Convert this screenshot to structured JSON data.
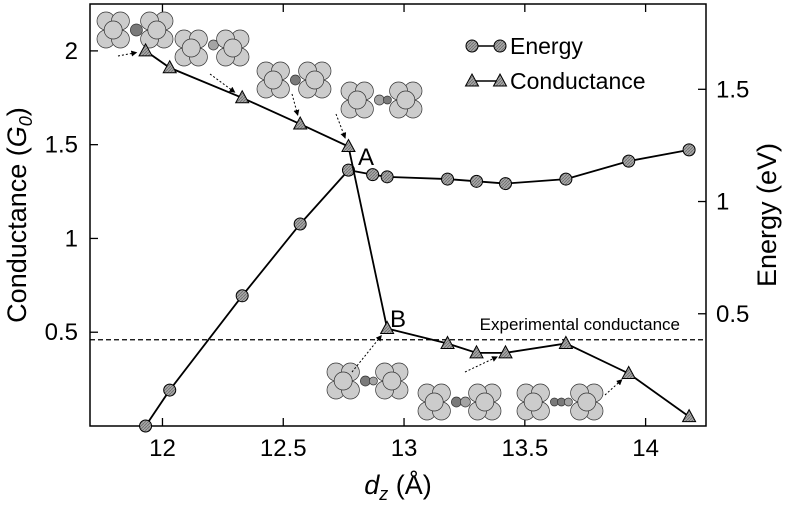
{
  "chart_data": {
    "type": "line",
    "xlabel": "d_z (Å)",
    "xlabel_main": "d",
    "xlabel_sub": "z",
    "xlabel_unit": " (Å)",
    "ylabel_left": "Conductance (G0)",
    "ylabel_left_main": "Conductance (",
    "ylabel_left_g": "G",
    "ylabel_left_sub": "0",
    "ylabel_left_close": ")",
    "ylabel_right": "Energy (eV)",
    "xlim": [
      11.7,
      14.25
    ],
    "ylim_left": [
      0,
      2.25
    ],
    "ylim_right": [
      0,
      1.88
    ],
    "x_ticks": [
      12,
      12.5,
      13,
      13.5,
      14
    ],
    "x_tick_labels": [
      "12",
      "12.5",
      "13",
      "13.5",
      "14"
    ],
    "y_left_ticks": [
      0.5,
      1,
      1.5,
      2
    ],
    "y_left_tick_labels": [
      "0.5",
      "1",
      "1.5",
      "2"
    ],
    "y_right_ticks": [
      0.5,
      1,
      1.5
    ],
    "y_right_tick_labels": [
      "0.5",
      "1",
      "1.5"
    ],
    "series": [
      {
        "name": "Energy",
        "axis": "right",
        "marker": "circle",
        "x": [
          11.93,
          12.03,
          12.33,
          12.57,
          12.77,
          12.87,
          12.93,
          13.18,
          13.3,
          13.42,
          13.67,
          13.93,
          14.18
        ],
        "y": [
          0.0,
          0.16,
          0.58,
          0.9,
          1.14,
          1.12,
          1.11,
          1.1,
          1.09,
          1.08,
          1.1,
          1.18,
          1.23
        ]
      },
      {
        "name": "Conductance",
        "axis": "left",
        "marker": "triangle",
        "x": [
          11.93,
          12.03,
          12.33,
          12.57,
          12.77,
          12.93,
          13.18,
          13.3,
          13.42,
          13.67,
          13.93,
          14.18
        ],
        "y": [
          2.0,
          1.91,
          1.75,
          1.61,
          1.49,
          0.52,
          0.44,
          0.39,
          0.39,
          0.44,
          0.28,
          0.05
        ]
      }
    ],
    "reference_line": {
      "label": "Experimental conductance",
      "y": 0.46
    },
    "annotations": [
      {
        "label": "A",
        "x": 12.77,
        "y": 1.49
      },
      {
        "label": "B",
        "x": 12.93,
        "y": 0.52
      }
    ],
    "legend_position": "top-right"
  },
  "colors": {
    "marker_fill": "#9a9a9a",
    "line": "#000000",
    "atom_light": "#cccccc",
    "atom_dark": "#7a7a7a",
    "atom_mid": "#a4a4a4"
  },
  "structure_icons": [
    {
      "name": "structure-icon-1",
      "arrow_to": [
        11.93,
        2.0
      ]
    },
    {
      "name": "structure-icon-2",
      "arrow_to": [
        12.33,
        1.75
      ]
    },
    {
      "name": "structure-icon-3",
      "arrow_to": [
        12.57,
        1.61
      ]
    },
    {
      "name": "structure-icon-4",
      "arrow_to": [
        12.77,
        1.49
      ]
    },
    {
      "name": "structure-icon-5",
      "arrow_to": [
        12.93,
        0.52
      ]
    },
    {
      "name": "structure-icon-6",
      "arrow_to": [
        13.42,
        0.39
      ]
    },
    {
      "name": "structure-icon-7",
      "arrow_to": [
        13.93,
        0.28
      ]
    }
  ]
}
